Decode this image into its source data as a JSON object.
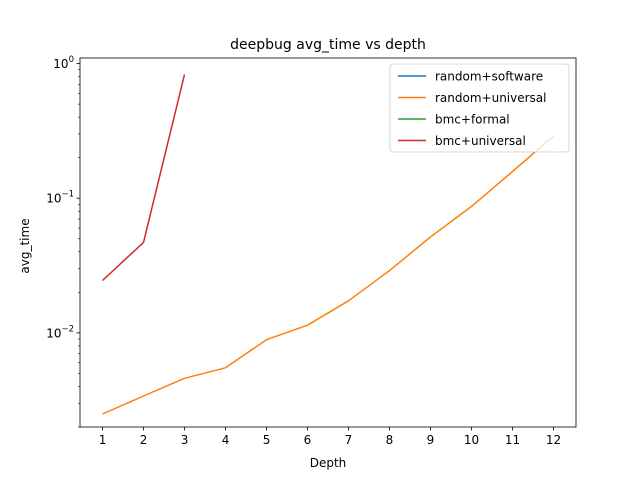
{
  "chart_data": {
    "type": "line",
    "title": "deepbug avg_time vs depth",
    "xlabel": "Depth",
    "ylabel": "avg_time",
    "xscale": "linear",
    "yscale": "log",
    "xlim": [
      0.45,
      12.55
    ],
    "ylim": [
      0.002,
      1.1
    ],
    "x_ticks": [
      1,
      2,
      3,
      4,
      5,
      6,
      7,
      8,
      9,
      10,
      11,
      12
    ],
    "y_ticks": [
      {
        "value": 0.01,
        "base": "10",
        "exp": "−2"
      },
      {
        "value": 0.1,
        "base": "10",
        "exp": "−1"
      },
      {
        "value": 1,
        "base": "10",
        "exp": "0"
      }
    ],
    "grid": false,
    "legend_position": "top-right",
    "series": [
      {
        "name": "random+software",
        "color": "#1f77b4",
        "x": [],
        "y": []
      },
      {
        "name": "random+universal",
        "color": "#ff7f0e",
        "x": [
          1,
          2,
          3,
          4,
          5,
          6,
          7,
          8,
          9,
          10,
          11,
          12
        ],
        "y": [
          0.0025,
          0.0034,
          0.0046,
          0.0055,
          0.0089,
          0.0114,
          0.0173,
          0.029,
          0.0515,
          0.087,
          0.158,
          0.29
        ]
      },
      {
        "name": "bmc+formal",
        "color": "#2ca02c",
        "x": [],
        "y": []
      },
      {
        "name": "bmc+universal",
        "color": "#d62728",
        "x": [
          1,
          2,
          3
        ],
        "y": [
          0.0245,
          0.047,
          0.83
        ]
      }
    ]
  }
}
